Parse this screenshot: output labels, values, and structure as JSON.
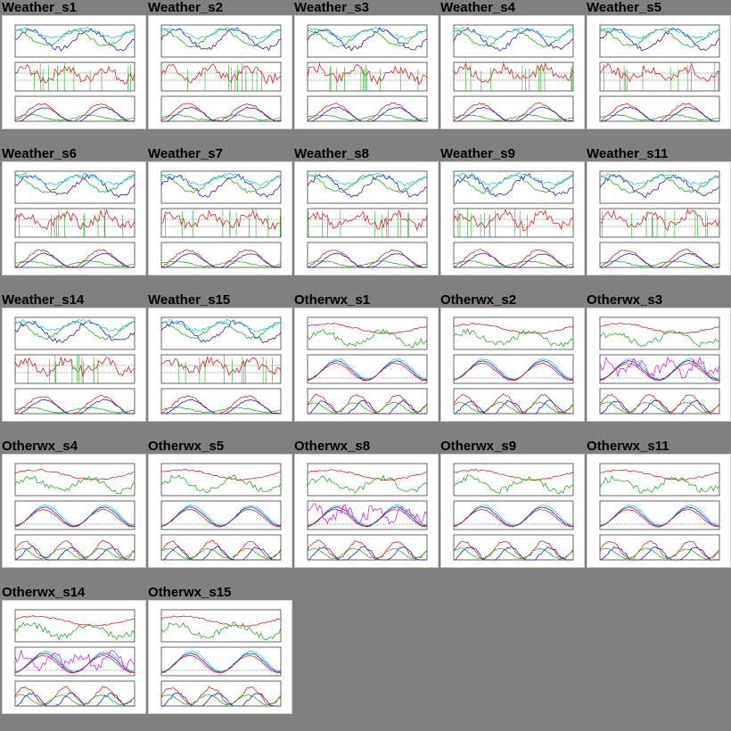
{
  "gallery": {
    "tiles": [
      {
        "title": "Weather_s1",
        "kind": "weather"
      },
      {
        "title": "Weather_s2",
        "kind": "weather"
      },
      {
        "title": "Weather_s3",
        "kind": "weather"
      },
      {
        "title": "Weather_s4",
        "kind": "weather"
      },
      {
        "title": "Weather_s5",
        "kind": "weather"
      },
      {
        "title": "Weather_s6",
        "kind": "weather"
      },
      {
        "title": "Weather_s7",
        "kind": "weather"
      },
      {
        "title": "Weather_s8",
        "kind": "weather"
      },
      {
        "title": "Weather_s9",
        "kind": "weather"
      },
      {
        "title": "Weather_s11",
        "kind": "weather"
      },
      {
        "title": "Weather_s14",
        "kind": "weather"
      },
      {
        "title": "Weather_s15",
        "kind": "weather"
      },
      {
        "title": "Otherwx_s1",
        "kind": "otherwx"
      },
      {
        "title": "Otherwx_s2",
        "kind": "otherwx"
      },
      {
        "title": "Otherwx_s3",
        "kind": "otherwx"
      },
      {
        "title": "Otherwx_s4",
        "kind": "otherwx"
      },
      {
        "title": "Otherwx_s5",
        "kind": "otherwx"
      },
      {
        "title": "Otherwx_s8",
        "kind": "otherwx"
      },
      {
        "title": "Otherwx_s9",
        "kind": "otherwx"
      },
      {
        "title": "Otherwx_s11",
        "kind": "otherwx"
      },
      {
        "title": "Otherwx_s14",
        "kind": "otherwx"
      },
      {
        "title": "Otherwx_s15",
        "kind": "otherwx"
      }
    ]
  },
  "colors": {
    "background": "#808080",
    "thumb_bg": "#ffffff",
    "series_red": "#e02020",
    "series_green": "#20b020",
    "series_blue": "#2020d0",
    "series_cyan": "#20c8e0",
    "series_magenta": "#e020e0"
  }
}
